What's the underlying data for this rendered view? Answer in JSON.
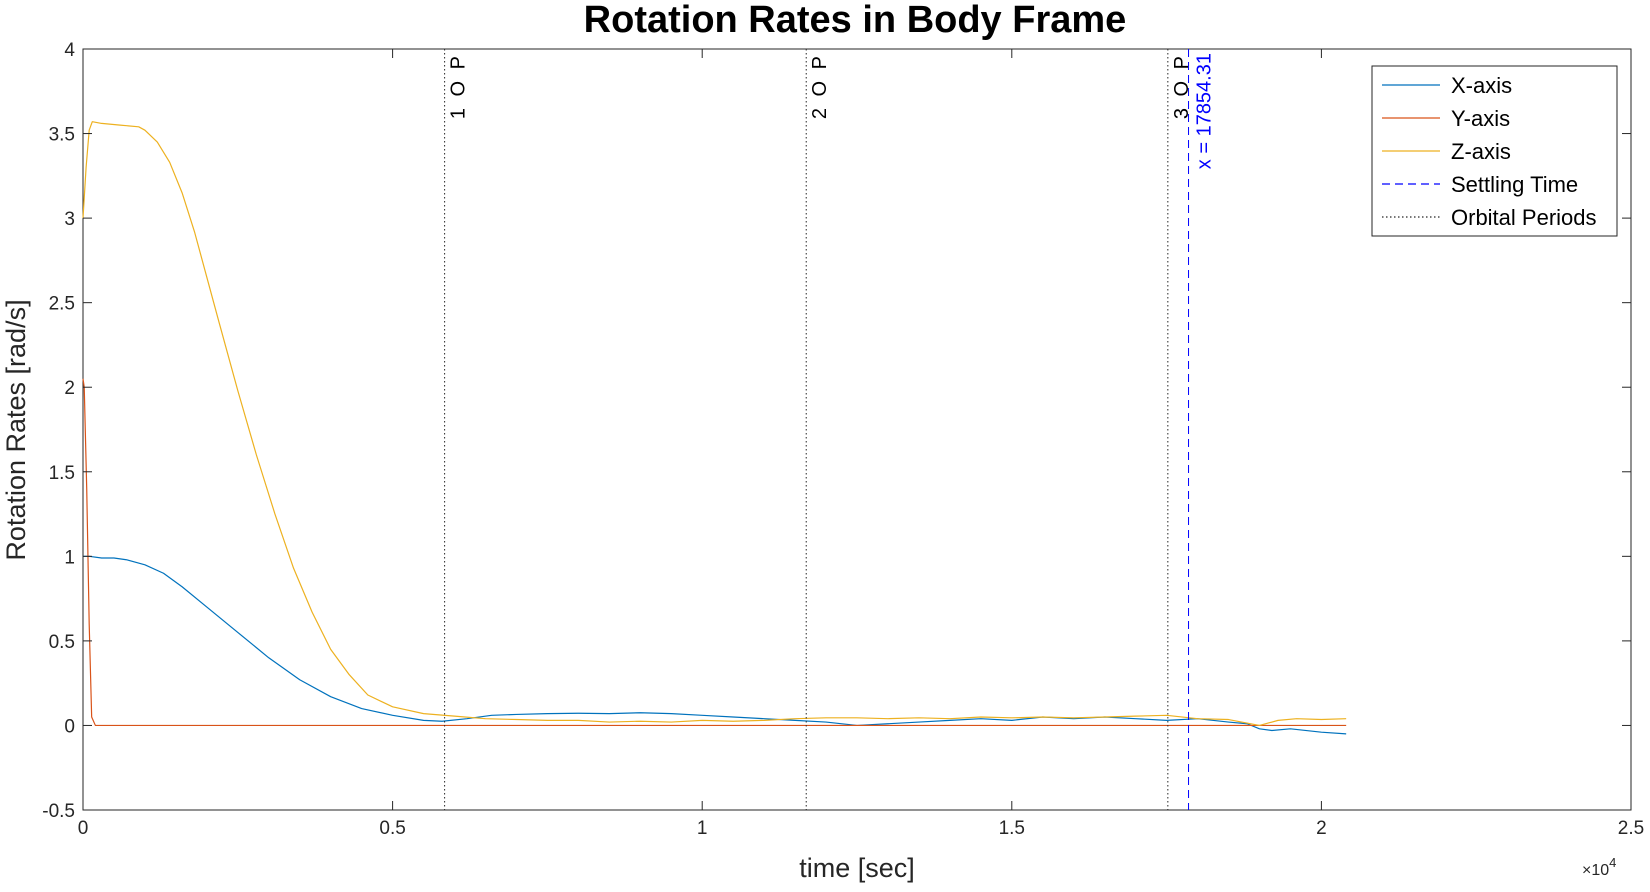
{
  "chart_data": {
    "type": "line",
    "title": "Rotation Rates in Body Frame",
    "xlabel": "time [sec]",
    "ylabel": "Rotation Rates  [rad/s]",
    "xlim": [
      0,
      25000
    ],
    "ylim": [
      -0.5,
      4
    ],
    "x_ticks": [
      0,
      5000,
      10000,
      15000,
      20000,
      25000
    ],
    "x_tick_labels": [
      "0",
      "0.5",
      "1",
      "1.5",
      "2",
      "2.5"
    ],
    "x_exponent_label": "×10",
    "x_exponent_power": "4",
    "y_ticks": [
      -0.5,
      0,
      0.5,
      1,
      1.5,
      2,
      2.5,
      3,
      3.5,
      4
    ],
    "y_tick_labels": [
      "-0.5",
      "0",
      "0.5",
      "1",
      "1.5",
      "2",
      "2.5",
      "3",
      "3.5",
      "4"
    ],
    "grid": false,
    "legend_position": "top-right",
    "legend": [
      "X-axis",
      "Y-axis",
      "Z-axis",
      "Settling Time",
      "Orbital Periods"
    ],
    "colors": {
      "x_axis": "#0072bd",
      "y_axis": "#d95319",
      "z_axis": "#edb120",
      "settling": "#0000ff",
      "orbital": "#262626"
    },
    "series": [
      {
        "name": "X-axis",
        "x": [
          0,
          100,
          300,
          500,
          700,
          1000,
          1300,
          1600,
          2000,
          2500,
          3000,
          3500,
          4000,
          4500,
          5000,
          5500,
          5800,
          6200,
          6600,
          7000,
          7500,
          8000,
          8500,
          9000,
          9500,
          10000,
          10500,
          11000,
          11500,
          12000,
          12500,
          13000,
          13500,
          14000,
          14500,
          15000,
          15500,
          16000,
          16500,
          17000,
          17500,
          18000,
          18500,
          18800,
          19000,
          19200,
          19500,
          20000,
          20400
        ],
        "y": [
          1.0,
          1.0,
          0.99,
          0.99,
          0.98,
          0.95,
          0.9,
          0.82,
          0.7,
          0.55,
          0.4,
          0.27,
          0.17,
          0.1,
          0.06,
          0.03,
          0.025,
          0.04,
          0.06,
          0.065,
          0.07,
          0.072,
          0.07,
          0.075,
          0.07,
          0.06,
          0.05,
          0.04,
          0.03,
          0.02,
          0.0,
          0.01,
          0.02,
          0.03,
          0.04,
          0.03,
          0.05,
          0.04,
          0.05,
          0.04,
          0.03,
          0.04,
          0.02,
          0.01,
          -0.02,
          -0.03,
          -0.02,
          -0.04,
          -0.05
        ]
      },
      {
        "name": "Y-axis",
        "x": [
          0,
          20,
          60,
          100,
          140,
          200,
          300,
          1000,
          5000,
          10000,
          15000,
          20400
        ],
        "y": [
          2.05,
          2.0,
          1.4,
          0.6,
          0.05,
          0.0,
          0.0,
          0.0,
          0.0,
          0.0,
          0.0,
          0.0
        ]
      },
      {
        "name": "Z-axis",
        "x": [
          0,
          50,
          100,
          150,
          300,
          600,
          900,
          1000,
          1200,
          1400,
          1600,
          1800,
          2000,
          2200,
          2500,
          2800,
          3100,
          3400,
          3700,
          4000,
          4300,
          4600,
          5000,
          5500,
          6000,
          6500,
          7000,
          7500,
          8000,
          8500,
          9000,
          9500,
          10000,
          10500,
          11000,
          11500,
          12000,
          12500,
          13000,
          13500,
          14000,
          14500,
          15000,
          15500,
          16000,
          16500,
          17000,
          17500,
          18000,
          18500,
          19000,
          19300,
          19600,
          20000,
          20400
        ],
        "y": [
          3.0,
          3.3,
          3.52,
          3.57,
          3.56,
          3.55,
          3.54,
          3.52,
          3.45,
          3.33,
          3.15,
          2.92,
          2.65,
          2.38,
          1.98,
          1.6,
          1.25,
          0.93,
          0.67,
          0.45,
          0.3,
          0.18,
          0.11,
          0.07,
          0.055,
          0.04,
          0.035,
          0.03,
          0.03,
          0.02,
          0.025,
          0.02,
          0.03,
          0.025,
          0.03,
          0.04,
          0.045,
          0.045,
          0.04,
          0.045,
          0.04,
          0.05,
          0.045,
          0.05,
          0.045,
          0.05,
          0.055,
          0.06,
          0.04,
          0.035,
          0.0,
          0.03,
          0.04,
          0.035,
          0.04
        ]
      }
    ],
    "vertical_lines": [
      {
        "kind": "orbital",
        "x": 5840,
        "label": "1 O P"
      },
      {
        "kind": "orbital",
        "x": 11680,
        "label": "2 O P"
      },
      {
        "kind": "orbital",
        "x": 17520,
        "label": "3 O P"
      },
      {
        "kind": "settling",
        "x": 17854.31,
        "label": "x = 17854.31"
      }
    ]
  }
}
